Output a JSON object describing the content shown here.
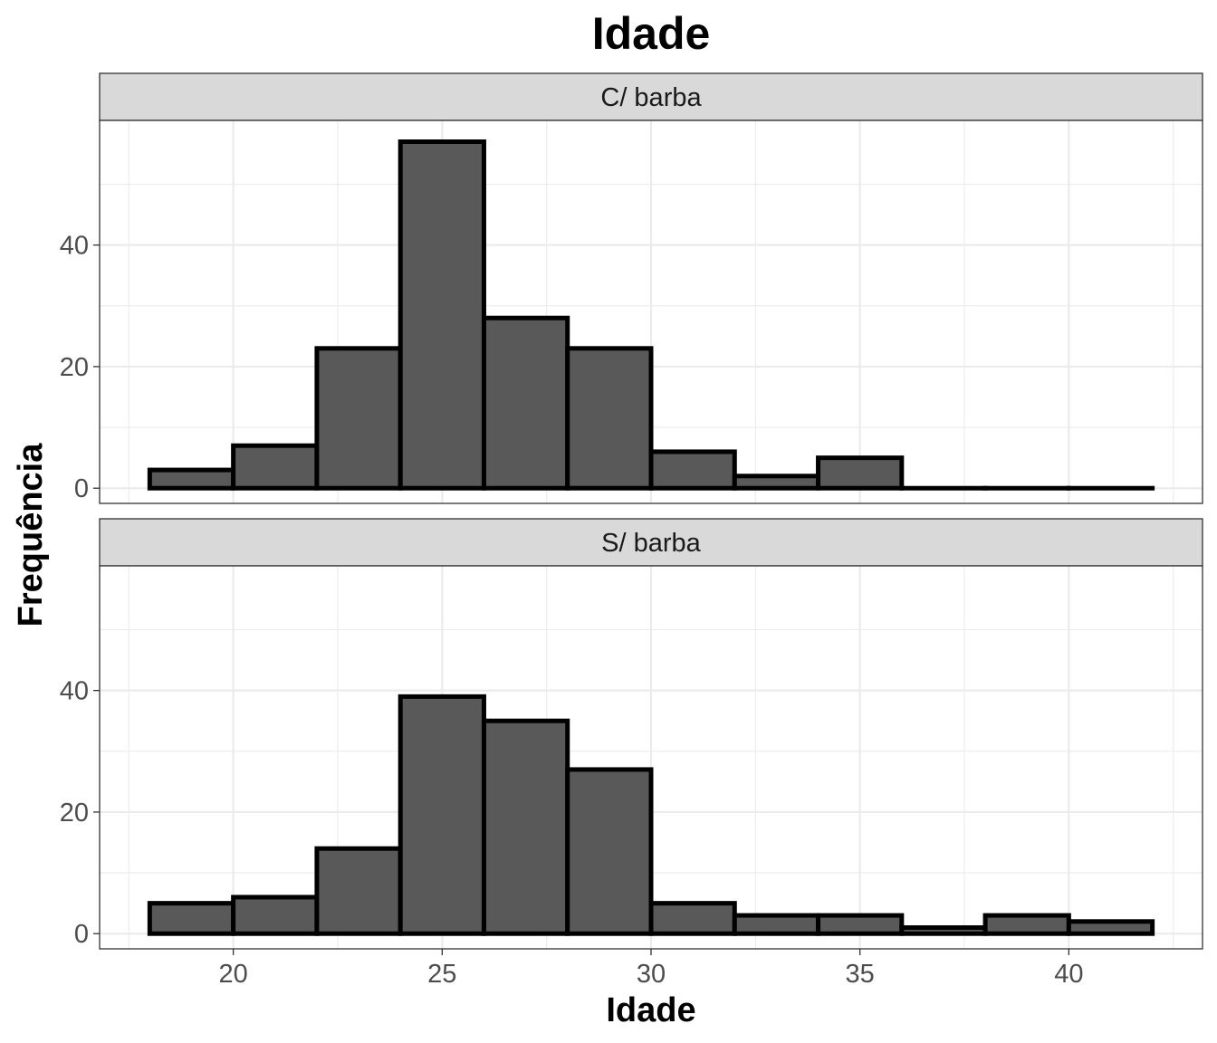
{
  "chart_data": {
    "type": "bar",
    "title": "Idade",
    "xlabel": "Idade",
    "ylabel": "Frequência",
    "xlim": [
      16.8,
      43.2
    ],
    "ylim": [
      -2.5,
      60.5
    ],
    "x_ticks": [
      20,
      25,
      30,
      35,
      40
    ],
    "y_ticks": [
      0,
      20,
      40
    ],
    "grid": true,
    "bin_edges": [
      18,
      20,
      22,
      24,
      26,
      28,
      30,
      32,
      34,
      36,
      38,
      40,
      42
    ],
    "facets": [
      {
        "name": "C/ barba",
        "values": [
          3,
          7,
          23,
          57,
          28,
          23,
          6,
          2,
          5,
          0,
          0,
          0
        ]
      },
      {
        "name": "S/ barba",
        "values": [
          5,
          6,
          14,
          39,
          35,
          27,
          5,
          3,
          3,
          1,
          3,
          2
        ]
      }
    ],
    "colors": {
      "fill": "#595959",
      "outline": "#000000",
      "strip_bg": "#d9d9d9",
      "grid": "#ebebeb"
    }
  }
}
